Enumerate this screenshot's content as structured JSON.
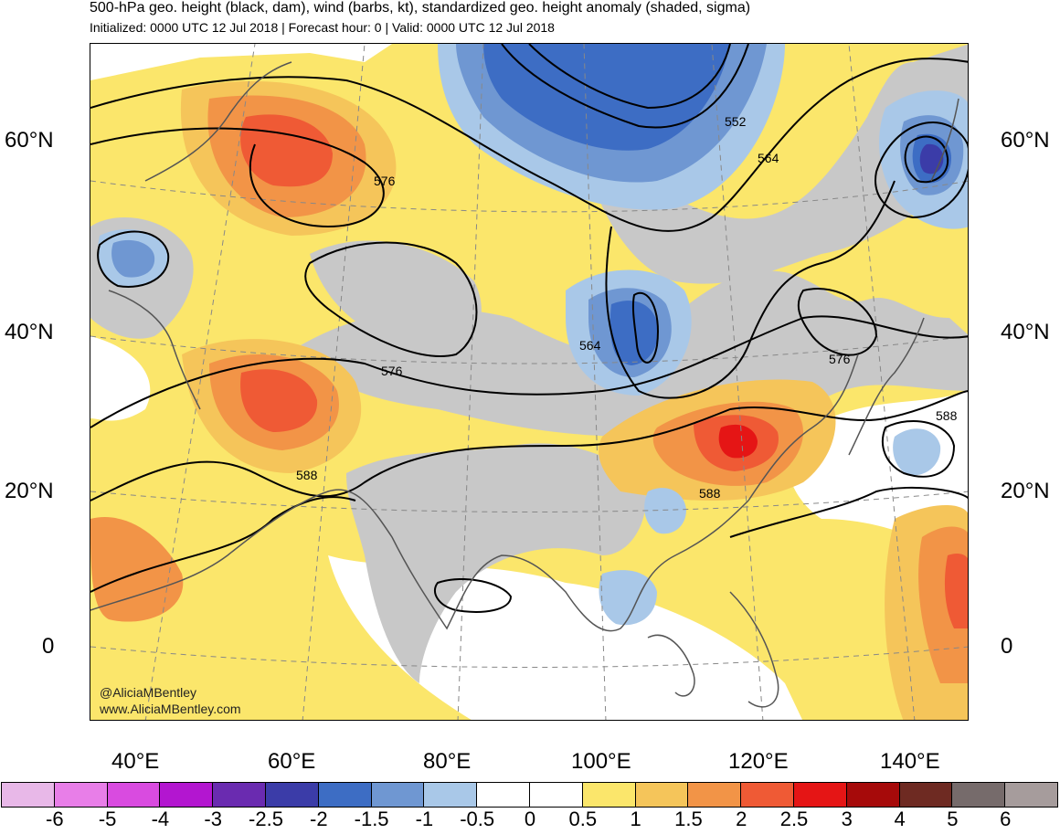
{
  "title": {
    "line1": "500-hPa geo. height (black, dam), wind (barbs, kt), standardized geo. height anomaly (shaded, sigma)",
    "line2": "Initialized: 0000 UTC 12 Jul 2018 | Forecast hour: 0 | Valid: 0000 UTC 12 Jul 2018"
  },
  "axes": {
    "lat_left": [
      "60°N",
      "40°N",
      "20°N",
      "0"
    ],
    "lat_right": [
      "60°N",
      "40°N",
      "20°N",
      "0"
    ],
    "lon": [
      "40°E",
      "60°E",
      "80°E",
      "100°E",
      "120°E",
      "140°E"
    ]
  },
  "contour_labels": [
    "576",
    "552",
    "564",
    "564",
    "576",
    "576",
    "588",
    "588",
    "588"
  ],
  "credit": {
    "handle": "@AliciaMBentley",
    "website": "www.AliciaMBentley.com"
  },
  "colorbar": {
    "colors": [
      "#e8b8e8",
      "#e87ee8",
      "#d94be0",
      "#b316d0",
      "#6a2bb0",
      "#3b3ca8",
      "#3d6dc4",
      "#6f97d2",
      "#a9c8e8",
      "#ffffff",
      "#ffffff",
      "#fbe66b",
      "#f5c55a",
      "#f29447",
      "#ef5a35",
      "#e51515",
      "#a60a0a",
      "#6e2a22",
      "#766b6b",
      "#a69c9c"
    ],
    "labels": [
      "-6",
      "-5",
      "-4",
      "-3",
      "-2.5",
      "-2",
      "-1.5",
      "-1",
      "-0.5",
      "0",
      "0.5",
      "1",
      "1.5",
      "2",
      "2.5",
      "3",
      "4",
      "5",
      "6"
    ]
  },
  "palette": {
    "gray_region": "#c8c8c8",
    "yellow": "#fbe66b",
    "light_orange": "#f5c55a",
    "orange": "#f29447",
    "red_orange": "#ef5a35",
    "red": "#e51515",
    "light_blue": "#a9c8e8",
    "mid_blue": "#6f97d2",
    "blue": "#3d6dc4",
    "dark_blue": "#3b3ca8",
    "purple": "#6a2bb0"
  }
}
